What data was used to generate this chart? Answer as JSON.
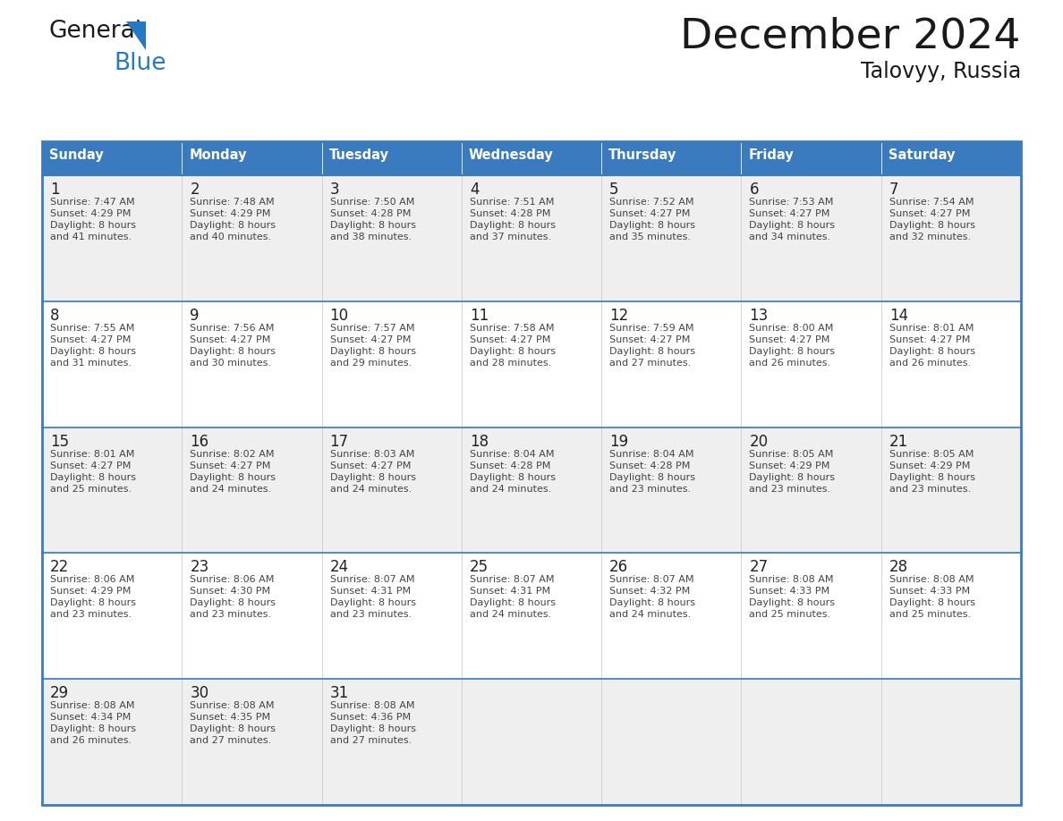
{
  "title": "December 2024",
  "subtitle": "Talovyy, Russia",
  "header_color": "#3a7abf",
  "header_text_color": "#ffffff",
  "cell_bg_even": "#efefef",
  "cell_bg_odd": "#ffffff",
  "border_color": "#3a7abf",
  "separator_color": "#3a7abf",
  "day_headers": [
    "Sunday",
    "Monday",
    "Tuesday",
    "Wednesday",
    "Thursday",
    "Friday",
    "Saturday"
  ],
  "days": [
    {
      "day": 1,
      "col": 0,
      "row": 0,
      "sunrise": "7:47 AM",
      "sunset": "4:29 PM",
      "daylight_min": "41 minutes."
    },
    {
      "day": 2,
      "col": 1,
      "row": 0,
      "sunrise": "7:48 AM",
      "sunset": "4:29 PM",
      "daylight_min": "40 minutes."
    },
    {
      "day": 3,
      "col": 2,
      "row": 0,
      "sunrise": "7:50 AM",
      "sunset": "4:28 PM",
      "daylight_min": "38 minutes."
    },
    {
      "day": 4,
      "col": 3,
      "row": 0,
      "sunrise": "7:51 AM",
      "sunset": "4:28 PM",
      "daylight_min": "37 minutes."
    },
    {
      "day": 5,
      "col": 4,
      "row": 0,
      "sunrise": "7:52 AM",
      "sunset": "4:27 PM",
      "daylight_min": "35 minutes."
    },
    {
      "day": 6,
      "col": 5,
      "row": 0,
      "sunrise": "7:53 AM",
      "sunset": "4:27 PM",
      "daylight_min": "34 minutes."
    },
    {
      "day": 7,
      "col": 6,
      "row": 0,
      "sunrise": "7:54 AM",
      "sunset": "4:27 PM",
      "daylight_min": "32 minutes."
    },
    {
      "day": 8,
      "col": 0,
      "row": 1,
      "sunrise": "7:55 AM",
      "sunset": "4:27 PM",
      "daylight_min": "31 minutes."
    },
    {
      "day": 9,
      "col": 1,
      "row": 1,
      "sunrise": "7:56 AM",
      "sunset": "4:27 PM",
      "daylight_min": "30 minutes."
    },
    {
      "day": 10,
      "col": 2,
      "row": 1,
      "sunrise": "7:57 AM",
      "sunset": "4:27 PM",
      "daylight_min": "29 minutes."
    },
    {
      "day": 11,
      "col": 3,
      "row": 1,
      "sunrise": "7:58 AM",
      "sunset": "4:27 PM",
      "daylight_min": "28 minutes."
    },
    {
      "day": 12,
      "col": 4,
      "row": 1,
      "sunrise": "7:59 AM",
      "sunset": "4:27 PM",
      "daylight_min": "27 minutes."
    },
    {
      "day": 13,
      "col": 5,
      "row": 1,
      "sunrise": "8:00 AM",
      "sunset": "4:27 PM",
      "daylight_min": "26 minutes."
    },
    {
      "day": 14,
      "col": 6,
      "row": 1,
      "sunrise": "8:01 AM",
      "sunset": "4:27 PM",
      "daylight_min": "26 minutes."
    },
    {
      "day": 15,
      "col": 0,
      "row": 2,
      "sunrise": "8:01 AM",
      "sunset": "4:27 PM",
      "daylight_min": "25 minutes."
    },
    {
      "day": 16,
      "col": 1,
      "row": 2,
      "sunrise": "8:02 AM",
      "sunset": "4:27 PM",
      "daylight_min": "24 minutes."
    },
    {
      "day": 17,
      "col": 2,
      "row": 2,
      "sunrise": "8:03 AM",
      "sunset": "4:27 PM",
      "daylight_min": "24 minutes."
    },
    {
      "day": 18,
      "col": 3,
      "row": 2,
      "sunrise": "8:04 AM",
      "sunset": "4:28 PM",
      "daylight_min": "24 minutes."
    },
    {
      "day": 19,
      "col": 4,
      "row": 2,
      "sunrise": "8:04 AM",
      "sunset": "4:28 PM",
      "daylight_min": "23 minutes."
    },
    {
      "day": 20,
      "col": 5,
      "row": 2,
      "sunrise": "8:05 AM",
      "sunset": "4:29 PM",
      "daylight_min": "23 minutes."
    },
    {
      "day": 21,
      "col": 6,
      "row": 2,
      "sunrise": "8:05 AM",
      "sunset": "4:29 PM",
      "daylight_min": "23 minutes."
    },
    {
      "day": 22,
      "col": 0,
      "row": 3,
      "sunrise": "8:06 AM",
      "sunset": "4:29 PM",
      "daylight_min": "23 minutes."
    },
    {
      "day": 23,
      "col": 1,
      "row": 3,
      "sunrise": "8:06 AM",
      "sunset": "4:30 PM",
      "daylight_min": "23 minutes."
    },
    {
      "day": 24,
      "col": 2,
      "row": 3,
      "sunrise": "8:07 AM",
      "sunset": "4:31 PM",
      "daylight_min": "23 minutes."
    },
    {
      "day": 25,
      "col": 3,
      "row": 3,
      "sunrise": "8:07 AM",
      "sunset": "4:31 PM",
      "daylight_min": "24 minutes."
    },
    {
      "day": 26,
      "col": 4,
      "row": 3,
      "sunrise": "8:07 AM",
      "sunset": "4:32 PM",
      "daylight_min": "24 minutes."
    },
    {
      "day": 27,
      "col": 5,
      "row": 3,
      "sunrise": "8:08 AM",
      "sunset": "4:33 PM",
      "daylight_min": "25 minutes."
    },
    {
      "day": 28,
      "col": 6,
      "row": 3,
      "sunrise": "8:08 AM",
      "sunset": "4:33 PM",
      "daylight_min": "25 minutes."
    },
    {
      "day": 29,
      "col": 0,
      "row": 4,
      "sunrise": "8:08 AM",
      "sunset": "4:34 PM",
      "daylight_min": "26 minutes."
    },
    {
      "day": 30,
      "col": 1,
      "row": 4,
      "sunrise": "8:08 AM",
      "sunset": "4:35 PM",
      "daylight_min": "27 minutes."
    },
    {
      "day": 31,
      "col": 2,
      "row": 4,
      "sunrise": "8:08 AM",
      "sunset": "4:36 PM",
      "daylight_min": "27 minutes."
    }
  ],
  "num_rows": 5,
  "logo_color_general": "#1a1a1a",
  "logo_color_blue": "#2479c2",
  "logo_triangle_color": "#2479c2",
  "fig_width": 11.88,
  "fig_height": 9.18,
  "dpi": 100
}
